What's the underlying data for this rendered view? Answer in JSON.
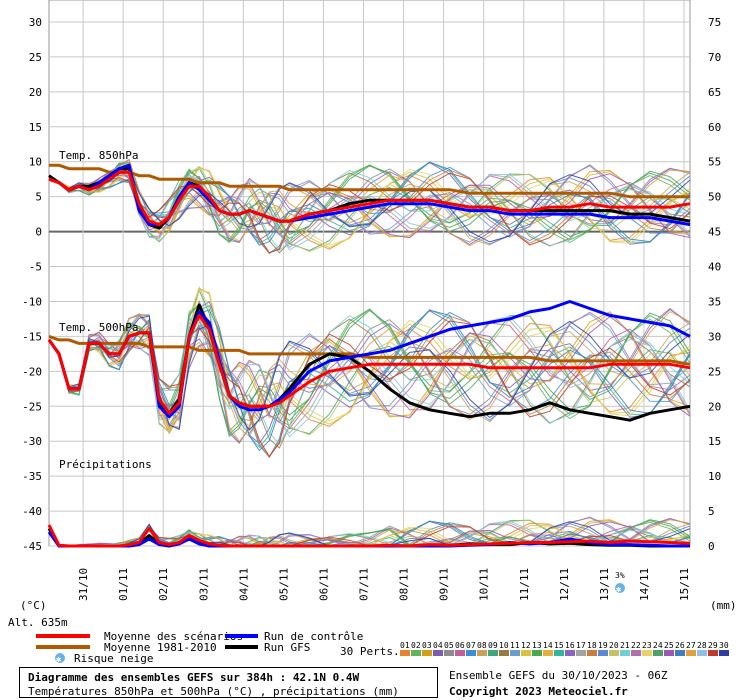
{
  "chart_data": {
    "type": "line",
    "title": "Diagramme des ensembles GEFS sur 384h : 42.1N 0.4W",
    "subtitle": "Températures 850hPa et 500hPa (°C) , précipitations (mm)",
    "run_info": "Ensemble GEFS du 30/10/2023 - 06Z",
    "copyright": "Copyright 2023 Meteociel.fr",
    "ylabel_left": "(°C)",
    "ylabel_right": "(mm)",
    "altitude": "Alt. 635m",
    "ylim_left": [
      -45,
      30
    ],
    "yticks_left": [
      "30",
      "25",
      "20",
      "15",
      "10",
      "5",
      "0",
      "-5",
      "-10",
      "-15",
      "-20",
      "-25",
      "-30",
      "-35",
      "-40",
      "-45"
    ],
    "yticks_right": [
      "75",
      "70",
      "65",
      "60",
      "55",
      "50",
      "45",
      "40",
      "35",
      "30",
      "25",
      "20",
      "15",
      "10",
      "5",
      "0"
    ],
    "x_ticks": [
      "31/10",
      "01/11",
      "02/11",
      "03/11",
      "04/11",
      "05/11",
      "06/11",
      "07/11",
      "08/11",
      "09/11",
      "10/11",
      "11/11",
      "12/11",
      "13/11",
      "14/11",
      "15/11"
    ],
    "panel_labels": {
      "t850": "Temp. 850hPa",
      "t500": "Temp. 500hPa",
      "precip": "Précipitations"
    },
    "snow_risk_label": "3%",
    "x_days": [
      0,
      0.25,
      0.5,
      0.75,
      1,
      1.25,
      1.5,
      1.75,
      2,
      2.25,
      2.5,
      2.75,
      3,
      3.25,
      3.5,
      3.75,
      4,
      4.25,
      4.5,
      4.75,
      5,
      5.25,
      5.5,
      5.75,
      6,
      6.5,
      7,
      7.5,
      8,
      8.5,
      9,
      9.5,
      10,
      10.5,
      11,
      11.5,
      12,
      12.5,
      13,
      13.5,
      14,
      14.5,
      15,
      15.5,
      16
    ],
    "series": [
      {
        "name": "Moyenne des scénarios",
        "color": "#ff0000",
        "group": "t850",
        "values": [
          7.5,
          7,
          6,
          6.5,
          6,
          6.5,
          7.5,
          8.5,
          8.5,
          4,
          1.5,
          1,
          2,
          4.5,
          6.5,
          6.5,
          5,
          3,
          2.5,
          2.5,
          3,
          2.5,
          2,
          1.5,
          1.5,
          2.5,
          3,
          3.5,
          4,
          4.5,
          4.5,
          4.5,
          4,
          3.5,
          3.5,
          3,
          3,
          3.5,
          3.5,
          4,
          3.5,
          3.5,
          3.5,
          3.5,
          4
        ]
      },
      {
        "name": "Moyenne 1981-2010",
        "color": "#b05a00",
        "group": "t850",
        "values": [
          9.5,
          9.5,
          9,
          9,
          9,
          9,
          8.5,
          8.5,
          8.5,
          8,
          8,
          7.5,
          7.5,
          7.5,
          7.5,
          7,
          7,
          7,
          6.5,
          6.5,
          6.5,
          6.5,
          6.5,
          6.5,
          6,
          6,
          6,
          6,
          6,
          6,
          6,
          6,
          6,
          5.5,
          5.5,
          5.5,
          5.5,
          5.5,
          5.5,
          5.5,
          5.5,
          5,
          5,
          5,
          5
        ]
      },
      {
        "name": "Run de contrôle",
        "color": "#0000ff",
        "group": "t850",
        "values": [
          7.5,
          7,
          6,
          6.5,
          6,
          7,
          8,
          9,
          9.5,
          3,
          1,
          1,
          2,
          5,
          7,
          6,
          4.5,
          3,
          2.5,
          2.5,
          3,
          2.5,
          2,
          1.5,
          1.5,
          2,
          2.5,
          3,
          3.5,
          4,
          4,
          4,
          3.5,
          3,
          3,
          2.5,
          2.5,
          2.5,
          2.5,
          2.5,
          2,
          2,
          2,
          1.5,
          1
        ]
      },
      {
        "name": "Run GFS",
        "color": "#000000",
        "group": "t850",
        "values": [
          8,
          7,
          6,
          6.5,
          6.5,
          7,
          8,
          9,
          9,
          3.5,
          1,
          0.5,
          2,
          5,
          7,
          6.5,
          5,
          3,
          2.5,
          2.5,
          3,
          2.5,
          2,
          1.5,
          1.5,
          2.5,
          3,
          4,
          4.5,
          4.5,
          4.5,
          4.5,
          4,
          3.5,
          3.5,
          3,
          3,
          3,
          3,
          3,
          3,
          2.5,
          2.5,
          2,
          1.5
        ]
      },
      {
        "name": "Moyenne des scénarios",
        "color": "#ff0000",
        "group": "t500",
        "values": [
          -15.5,
          -17.5,
          -22.5,
          -22.5,
          -16,
          -16,
          -17.5,
          -17.5,
          -15,
          -14.5,
          -14.5,
          -24,
          -26,
          -24.5,
          -15,
          -12,
          -14,
          -19,
          -23.5,
          -24.5,
          -25,
          -25,
          -25,
          -24.5,
          -23.5,
          -21.5,
          -20,
          -19.5,
          -19,
          -19,
          -19,
          -19,
          -19,
          -19,
          -19.5,
          -19.5,
          -19.5,
          -19.5,
          -19.5,
          -19.5,
          -19,
          -19,
          -19,
          -19,
          -19.5
        ]
      },
      {
        "name": "Moyenne 1981-2010",
        "color": "#b05a00",
        "group": "t500",
        "values": [
          -15,
          -15.5,
          -15.5,
          -16,
          -16,
          -16,
          -16,
          -16,
          -16,
          -16,
          -16.5,
          -16.5,
          -16.5,
          -16.5,
          -16.5,
          -17,
          -17,
          -17,
          -17,
          -17,
          -17.5,
          -17.5,
          -17.5,
          -17.5,
          -17.5,
          -17.5,
          -17.5,
          -17.5,
          -18,
          -18,
          -18,
          -18,
          -18,
          -18,
          -18,
          -18,
          -18,
          -18.5,
          -18.5,
          -18.5,
          -18.5,
          -18.5,
          -18.5,
          -18.5,
          -19
        ]
      },
      {
        "name": "Run de contrôle",
        "color": "#0000ff",
        "group": "t500",
        "values": [
          -15.5,
          -17.5,
          -22.5,
          -22.5,
          -16,
          -16,
          -17.5,
          -17.5,
          -15,
          -14.5,
          -14.5,
          -25,
          -26.5,
          -25,
          -15,
          -11.5,
          -13,
          -18.5,
          -23.5,
          -25,
          -25.5,
          -25.5,
          -25,
          -24,
          -23,
          -20,
          -18.5,
          -18,
          -17.5,
          -17,
          -16,
          -15,
          -14,
          -13.5,
          -13,
          -12.5,
          -11.5,
          -11,
          -10,
          -11,
          -12,
          -12.5,
          -13,
          -13.5,
          -15
        ]
      },
      {
        "name": "Run GFS",
        "color": "#000000",
        "group": "t500",
        "values": [
          -15.5,
          -17.5,
          -22.5,
          -22.5,
          -16,
          -16,
          -17.5,
          -17.5,
          -15,
          -14.5,
          -14.5,
          -24.5,
          -26,
          -24,
          -15,
          -10.5,
          -14,
          -19,
          -23.5,
          -24.5,
          -25,
          -25,
          -25,
          -24,
          -22.5,
          -19,
          -17.5,
          -18,
          -20,
          -22.5,
          -24.5,
          -25.5,
          -26,
          -26.5,
          -26,
          -26,
          -25.5,
          -24.5,
          -25.5,
          -26,
          -26.5,
          -27,
          -26,
          -25.5,
          -25
        ]
      },
      {
        "name": "Moyenne des scénarios",
        "color": "#ff0000",
        "group": "precip",
        "values": [
          3,
          0.1,
          0,
          0,
          0,
          0,
          0,
          0,
          0.2,
          0.5,
          2.5,
          0.5,
          0.2,
          0.5,
          1.5,
          0.8,
          0.3,
          0.1,
          0,
          0,
          0,
          0,
          0,
          0,
          0,
          0,
          0,
          0,
          0,
          0.1,
          0,
          0.2,
          0.1,
          0.2,
          0.3,
          0.4,
          0.5,
          0.5,
          0.6,
          0.7,
          0.5,
          0.7,
          0.6,
          0.5,
          0.4
        ]
      },
      {
        "name": "Run de contrôle",
        "color": "#0000ff",
        "group": "precip",
        "values": [
          2,
          0,
          0,
          0,
          0,
          0,
          0,
          0,
          0,
          0.2,
          1,
          0.2,
          0,
          0.3,
          1,
          0.3,
          0,
          0,
          0,
          0,
          0,
          0,
          0,
          0,
          0,
          0,
          0,
          0,
          0,
          0,
          0,
          0,
          0,
          0.1,
          0.2,
          0.5,
          0.3,
          0.5,
          1,
          0.5,
          0.2,
          0.2,
          0.1,
          0,
          0
        ]
      },
      {
        "name": "Run GFS",
        "color": "#000000",
        "group": "precip",
        "values": [
          2.5,
          0,
          0,
          0,
          0,
          0,
          0,
          0,
          0,
          0.3,
          1.5,
          0.3,
          0,
          0.5,
          1.2,
          0.5,
          0,
          0,
          0,
          0,
          0,
          0,
          0,
          0,
          0,
          0,
          0,
          0,
          0,
          0,
          0,
          0,
          0.1,
          0.3,
          0.2,
          0.2,
          0.5,
          0.3,
          0.4,
          0.2,
          0.1,
          0.1,
          0,
          0,
          0
        ]
      }
    ],
    "grid": true
  },
  "legend": {
    "mean": "Moyenne des scénarios",
    "climate": "Moyenne 1981-2010",
    "snow": "Risque neige",
    "control": "Run de contrôle",
    "gfs": "Run GFS",
    "perts_label": "30 Perts.",
    "perts": [
      "01",
      "02",
      "03",
      "04",
      "05",
      "06",
      "07",
      "08",
      "09",
      "10",
      "11",
      "12",
      "13",
      "14",
      "15",
      "16",
      "17",
      "18",
      "19",
      "20",
      "21",
      "22",
      "23",
      "24",
      "25",
      "26",
      "27",
      "28",
      "29",
      "30"
    ],
    "pert_colors": [
      "#e8842f",
      "#64b45a",
      "#d4a017",
      "#7a5cb0",
      "#8c8c8c",
      "#c25e99",
      "#3c8fd0",
      "#c9a15a",
      "#3da87a",
      "#9b7a3f",
      "#6aa0c8",
      "#d8c43a",
      "#4aa84f",
      "#e4b23c",
      "#2fb79d",
      "#8a63c9",
      "#a3a3a3",
      "#c87e3c",
      "#5b8ad6",
      "#c4c464",
      "#6ecfd6",
      "#b070b0",
      "#e6d36a",
      "#4fa16a",
      "#9b59b6",
      "#3f7fbf",
      "#e0a040",
      "#8ec2e0",
      "#c0392b",
      "#2c3ea0"
    ]
  }
}
